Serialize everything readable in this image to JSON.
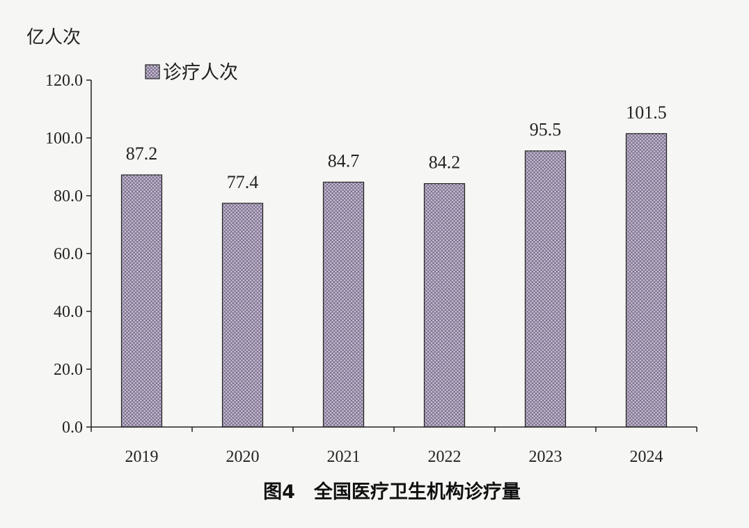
{
  "chart_data": {
    "type": "bar",
    "title": "图4　全国医疗卫生机构诊疗量",
    "ylabel": "亿人次",
    "xlabel": "",
    "categories": [
      "2019",
      "2020",
      "2021",
      "2022",
      "2023",
      "2024"
    ],
    "series": [
      {
        "name": "诊疗人次",
        "values": [
          87.2,
          77.4,
          84.7,
          84.2,
          95.5,
          101.5
        ],
        "labels": [
          "87.2",
          "77.4",
          "84.7",
          "84.2",
          "95.5",
          "101.5"
        ]
      }
    ],
    "ylim": [
      0,
      120
    ],
    "yticks": [
      "0.0",
      "20.0",
      "40.0",
      "60.0",
      "80.0",
      "100.0",
      "120.0"
    ],
    "legend_position": "top-left",
    "grid": false,
    "bar_fill": "#c8c0d4",
    "bar_pattern": "#6f6080",
    "bar_edge": "#222222"
  }
}
